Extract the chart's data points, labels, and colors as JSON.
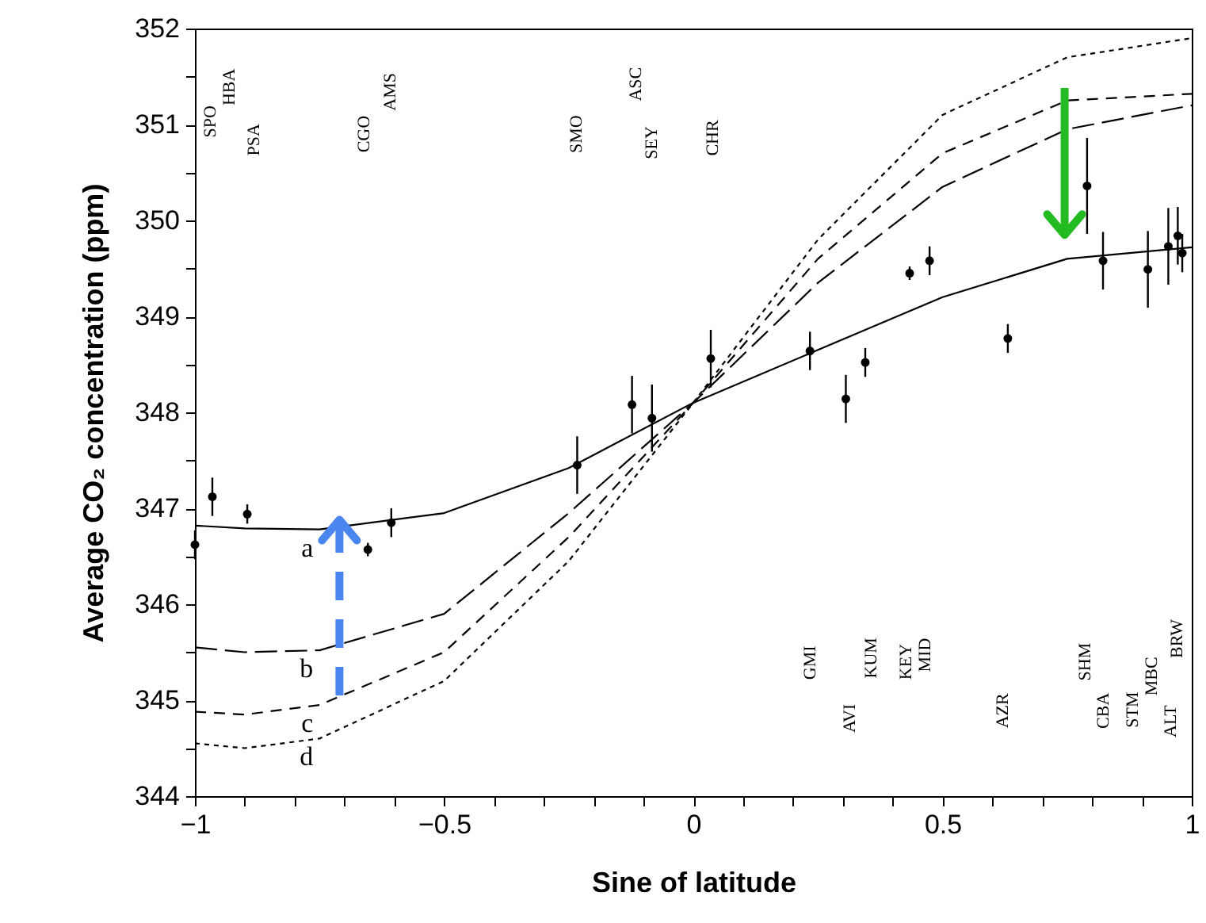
{
  "chart_data": {
    "type": "line",
    "xlabel": "Sine of latitude",
    "ylabel": "Average CO₂ concentration (ppm)",
    "xlim": [
      -1,
      1
    ],
    "ylim": [
      344,
      352
    ],
    "xticks": [
      {
        "value": -1,
        "label": "−1"
      },
      {
        "value": -0.9,
        "label": null
      },
      {
        "value": -0.8,
        "label": null
      },
      {
        "value": -0.7,
        "label": null
      },
      {
        "value": -0.6,
        "label": null
      },
      {
        "value": -0.5,
        "label": "−0.5"
      },
      {
        "value": -0.4,
        "label": null
      },
      {
        "value": -0.3,
        "label": null
      },
      {
        "value": -0.2,
        "label": null
      },
      {
        "value": -0.1,
        "label": null
      },
      0,
      {
        "value": 0.1,
        "label": null
      },
      {
        "value": 0.2,
        "label": null
      },
      {
        "value": 0.3,
        "label": null
      },
      {
        "value": 0.4,
        "label": null
      },
      0.5,
      {
        "value": 0.6,
        "label": null
      },
      {
        "value": 0.7,
        "label": null
      },
      {
        "value": 0.8,
        "label": null
      },
      {
        "value": 0.9,
        "label": null
      },
      1
    ],
    "yticks": [
      344,
      {
        "value": 344.5,
        "label": null
      },
      345,
      {
        "value": 345.5,
        "label": null
      },
      346,
      {
        "value": 346.5,
        "label": null
      },
      347,
      {
        "value": 347.5,
        "label": null
      },
      348,
      {
        "value": 348.5,
        "label": null
      },
      349,
      {
        "value": 349.5,
        "label": null
      },
      350,
      {
        "value": 350.5,
        "label": null
      },
      351,
      {
        "value": 351.5,
        "label": null
      },
      352
    ],
    "grid": false,
    "series": [
      {
        "name": "a",
        "line_style": "solid",
        "color": "#000000",
        "x": [
          -1,
          -0.9,
          -0.75,
          -0.5,
          -0.25,
          0,
          0.25,
          0.5,
          0.75,
          1
        ],
        "values": [
          346.82,
          346.79,
          346.78,
          346.95,
          347.42,
          348.1,
          348.65,
          349.2,
          349.6,
          349.72
        ]
      },
      {
        "name": "b",
        "line_style": "dashed",
        "color": "#000000",
        "x": [
          -1,
          -0.9,
          -0.75,
          -0.5,
          -0.25,
          0,
          0.25,
          0.5,
          0.75,
          1
        ],
        "values": [
          345.55,
          345.5,
          345.52,
          345.9,
          346.95,
          348.1,
          349.35,
          350.35,
          350.95,
          351.2
        ]
      },
      {
        "name": "c",
        "line_style": "dashed",
        "color": "#000000",
        "x": [
          -1,
          -0.9,
          -0.75,
          -0.5,
          -0.25,
          0,
          0.25,
          0.5,
          0.75,
          1
        ],
        "values": [
          344.88,
          344.85,
          344.95,
          345.5,
          346.7,
          348.1,
          349.6,
          350.7,
          351.25,
          351.32
        ]
      },
      {
        "name": "d",
        "line_style": "dotted",
        "color": "#000000",
        "x": [
          -1,
          -0.9,
          -0.75,
          -0.5,
          -0.25,
          0,
          0.25,
          0.5,
          0.75,
          1
        ],
        "values": [
          344.55,
          344.5,
          344.6,
          345.2,
          346.45,
          348.1,
          349.8,
          351.1,
          351.7,
          351.9
        ]
      },
      {
        "type": "scatter",
        "marker": "circle",
        "color": "#000000",
        "x": [
          -1,
          -0.965,
          -0.895,
          -0.653,
          -0.606,
          -0.233,
          -0.123,
          -0.083,
          0.035,
          0.234,
          0.306,
          0.345,
          0.434,
          0.474,
          0.631,
          0.79,
          0.822,
          0.912,
          0.953,
          0.972,
          0.981
        ],
        "values": [
          346.62,
          347.12,
          346.94,
          346.57,
          346.85,
          347.45,
          348.08,
          347.94,
          348.56,
          348.64,
          348.14,
          348.52,
          349.45,
          349.58,
          348.77,
          350.36,
          349.58,
          349.49,
          349.73,
          349.84,
          349.66
        ],
        "errors": [
          0.15,
          0.2,
          0.1,
          0.07,
          0.15,
          0.3,
          0.3,
          0.35,
          0.3,
          0.2,
          0.25,
          0.15,
          0.07,
          0.15,
          0.15,
          0.5,
          0.3,
          0.4,
          0.4,
          0.3,
          0.2
        ]
      }
    ],
    "annotations": [
      "SPO",
      "HBA",
      "PSA",
      "CGO",
      "AMS",
      "SMO",
      "ASC",
      "SEY",
      "CHR",
      "GMI",
      "AVI",
      "KUM",
      "KEY",
      "MID",
      "AZR",
      "SHM",
      "CBA",
      "STM",
      "MBC",
      "ALT",
      "BRW"
    ]
  }
}
